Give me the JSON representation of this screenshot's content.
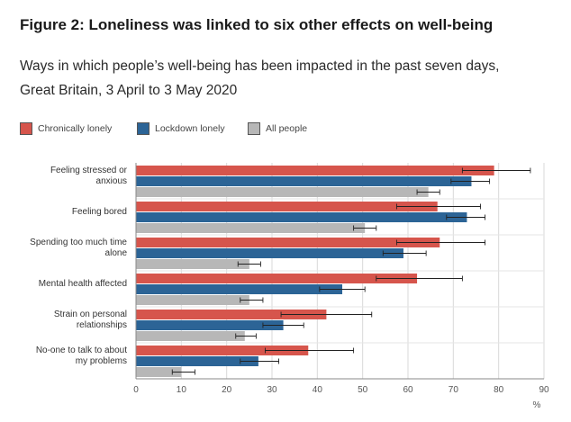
{
  "figure": {
    "title": "Figure 2: Loneliness was linked to six other effects on well-being",
    "subtitle": "Ways in which people’s well-being has been impacted in the past seven days, Great Britain, 3 April to 3 May 2020"
  },
  "legend": [
    {
      "name": "Chronically lonely",
      "color": "#d6554c"
    },
    {
      "name": "Lockdown lonely",
      "color": "#2c6496"
    },
    {
      "name": "All people",
      "color": "#b7b7b7"
    }
  ],
  "chart_data": {
    "type": "bar",
    "orientation": "horizontal",
    "categories": [
      [
        "Feeling stressed or",
        "anxious"
      ],
      [
        "Feeling bored"
      ],
      [
        "Spending too much time",
        "alone"
      ],
      [
        "Mental health affected"
      ],
      [
        "Strain on personal",
        "relationships"
      ],
      [
        "No-one to talk to about",
        "my problems"
      ]
    ],
    "series": [
      {
        "name": "Chronically lonely",
        "color": "#d6554c",
        "values": [
          79,
          66.5,
          67,
          62,
          42,
          38
        ],
        "ci": [
          [
            72,
            87
          ],
          [
            57.5,
            76
          ],
          [
            57.5,
            77
          ],
          [
            53,
            72
          ],
          [
            32,
            52
          ],
          [
            28.5,
            48
          ]
        ]
      },
      {
        "name": "Lockdown lonely",
        "color": "#2c6496",
        "values": [
          74,
          73,
          59,
          45.5,
          32.5,
          27
        ],
        "ci": [
          [
            69.5,
            78
          ],
          [
            68.5,
            77
          ],
          [
            54.5,
            64
          ],
          [
            40.5,
            50.5
          ],
          [
            28,
            37
          ],
          [
            23,
            31.5
          ]
        ]
      },
      {
        "name": "All people",
        "color": "#b7b7b7",
        "values": [
          64.5,
          50.5,
          25,
          25,
          24,
          10
        ],
        "ci": [
          [
            62,
            67
          ],
          [
            48,
            53
          ],
          [
            22.5,
            27.5
          ],
          [
            23,
            28
          ],
          [
            22,
            26.5
          ],
          [
            8,
            13
          ]
        ]
      }
    ],
    "xlim": [
      0,
      90
    ],
    "xticks": [
      0,
      10,
      20,
      30,
      40,
      50,
      60,
      70,
      80,
      90
    ],
    "xlabel": "%",
    "grid": true
  }
}
